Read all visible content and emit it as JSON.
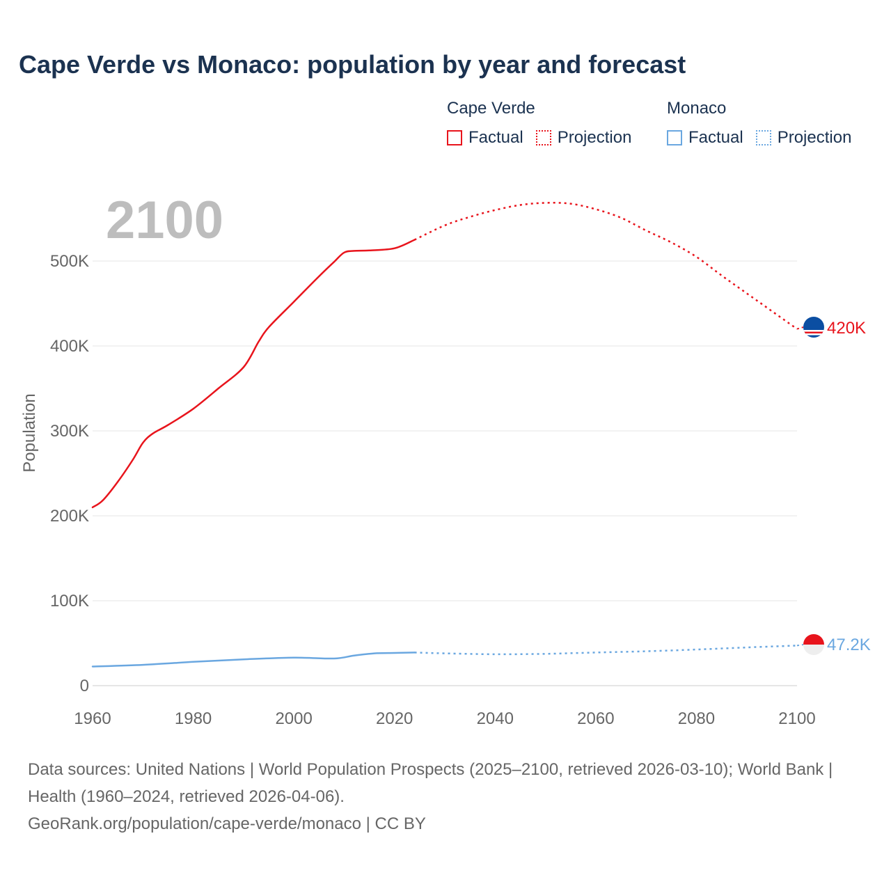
{
  "title": "Cape Verde vs Monaco: population by year and forecast",
  "legend": {
    "groups": [
      {
        "name": "Cape Verde",
        "factual": "Factual",
        "projection": "Projection",
        "color": "#e8141c"
      },
      {
        "name": "Monaco",
        "factual": "Factual",
        "projection": "Projection",
        "color": "#6aa7e0"
      }
    ]
  },
  "year_label": "2100",
  "end_labels": {
    "cape_verde": "420K",
    "monaco": "47.2K"
  },
  "sources": {
    "line1": "Data sources: United Nations | World Population Prospects (2025–2100, retrieved 2026-03-10); World Bank | Health (1960–2024, retrieved 2026-04-06).",
    "line2": "GeoRank.org/population/cape-verde/monaco | CC BY"
  },
  "chart_data": {
    "type": "line",
    "title": "Cape Verde vs Monaco: population by year and forecast",
    "xlabel": "",
    "ylabel": "Population",
    "xlim": [
      1960,
      2100
    ],
    "ylim": [
      0,
      580000
    ],
    "x_ticks": [
      1960,
      1980,
      2000,
      2020,
      2040,
      2060,
      2080,
      2100
    ],
    "y_ticks": [
      {
        "value": 0,
        "label": "0"
      },
      {
        "value": 100000,
        "label": "100K"
      },
      {
        "value": 200000,
        "label": "200K"
      },
      {
        "value": 300000,
        "label": "300K"
      },
      {
        "value": 400000,
        "label": "400K"
      },
      {
        "value": 500000,
        "label": "500K"
      }
    ],
    "series": [
      {
        "name": "Cape Verde",
        "kind": "Factual",
        "color": "#e8141c",
        "x": [
          1960,
          1962,
          1965,
          1968,
          1970,
          1972,
          1975,
          1980,
          1985,
          1990,
          1993,
          1995,
          2000,
          2005,
          2008,
          2010,
          2012,
          2015,
          2020,
          2024
        ],
        "values": [
          210000,
          218000,
          240000,
          266000,
          286000,
          297000,
          307000,
          326000,
          350000,
          375000,
          405000,
          422000,
          452000,
          482000,
          499000,
          510000,
          512000,
          512500,
          515000,
          525000
        ]
      },
      {
        "name": "Cape Verde",
        "kind": "Projection",
        "color": "#e8141c",
        "x": [
          2024,
          2030,
          2035,
          2040,
          2045,
          2050,
          2055,
          2060,
          2065,
          2070,
          2075,
          2080,
          2085,
          2090,
          2095,
          2100
        ],
        "values": [
          525000,
          542000,
          552000,
          560000,
          566000,
          568500,
          567500,
          561000,
          551000,
          536000,
          522000,
          505000,
          483000,
          462000,
          441000,
          420000
        ]
      },
      {
        "name": "Monaco",
        "kind": "Factual",
        "color": "#6aa7e0",
        "x": [
          1960,
          1970,
          1980,
          1990,
          2000,
          2008,
          2012,
          2016,
          2020,
          2024
        ],
        "values": [
          22500,
          24500,
          28000,
          31000,
          33000,
          32000,
          35500,
          38000,
          38500,
          39000
        ]
      },
      {
        "name": "Monaco",
        "kind": "Projection",
        "color": "#6aa7e0",
        "x": [
          2024,
          2030,
          2040,
          2050,
          2060,
          2070,
          2080,
          2090,
          2100
        ],
        "values": [
          39000,
          38000,
          37000,
          37500,
          39000,
          40500,
          42500,
          45000,
          47200
        ]
      }
    ]
  }
}
